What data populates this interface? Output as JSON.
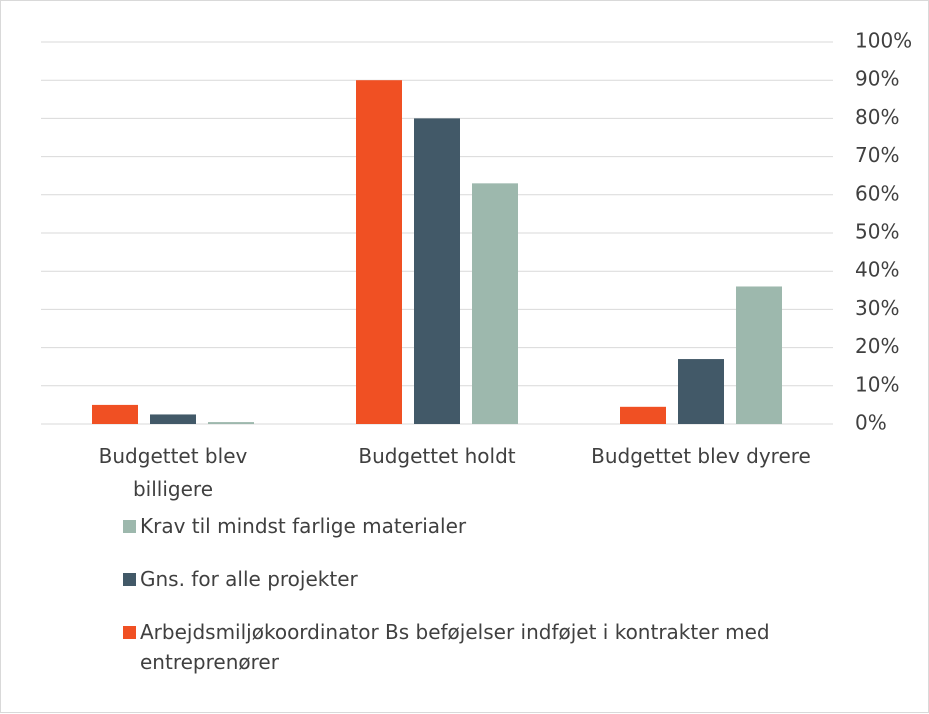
{
  "chart_data": {
    "type": "bar",
    "categories": [
      "Budgettet blev billigere",
      "Budgettet holdt",
      "Budgettet blev dyrere"
    ],
    "series": [
      {
        "name": "Arbejdsmiljøkoordinator Bs beføjelser indføjet i kontrakter med entreprenører",
        "color": "#f05023",
        "values": [
          5,
          90,
          4.5
        ]
      },
      {
        "name": "Gns. for alle projekter",
        "color": "#425968",
        "values": [
          2.5,
          80,
          17
        ]
      },
      {
        "name": "Krav til mindst farlige materialer",
        "color": "#9db8ad",
        "values": [
          0.5,
          63,
          36
        ]
      }
    ],
    "ylim": [
      0,
      100
    ],
    "yticks": [
      {
        "value": 0,
        "label": "0%"
      },
      {
        "value": 10,
        "label": "10%"
      },
      {
        "value": 20,
        "label": "20%"
      },
      {
        "value": 30,
        "label": "30%"
      },
      {
        "value": 40,
        "label": "40%"
      },
      {
        "value": 50,
        "label": "50%"
      },
      {
        "value": 60,
        "label": "60%"
      },
      {
        "value": 70,
        "label": "70%"
      },
      {
        "value": 80,
        "label": "80%"
      },
      {
        "value": 90,
        "label": "90%"
      },
      {
        "value": 100,
        "label": "100%"
      }
    ],
    "grid": true
  }
}
